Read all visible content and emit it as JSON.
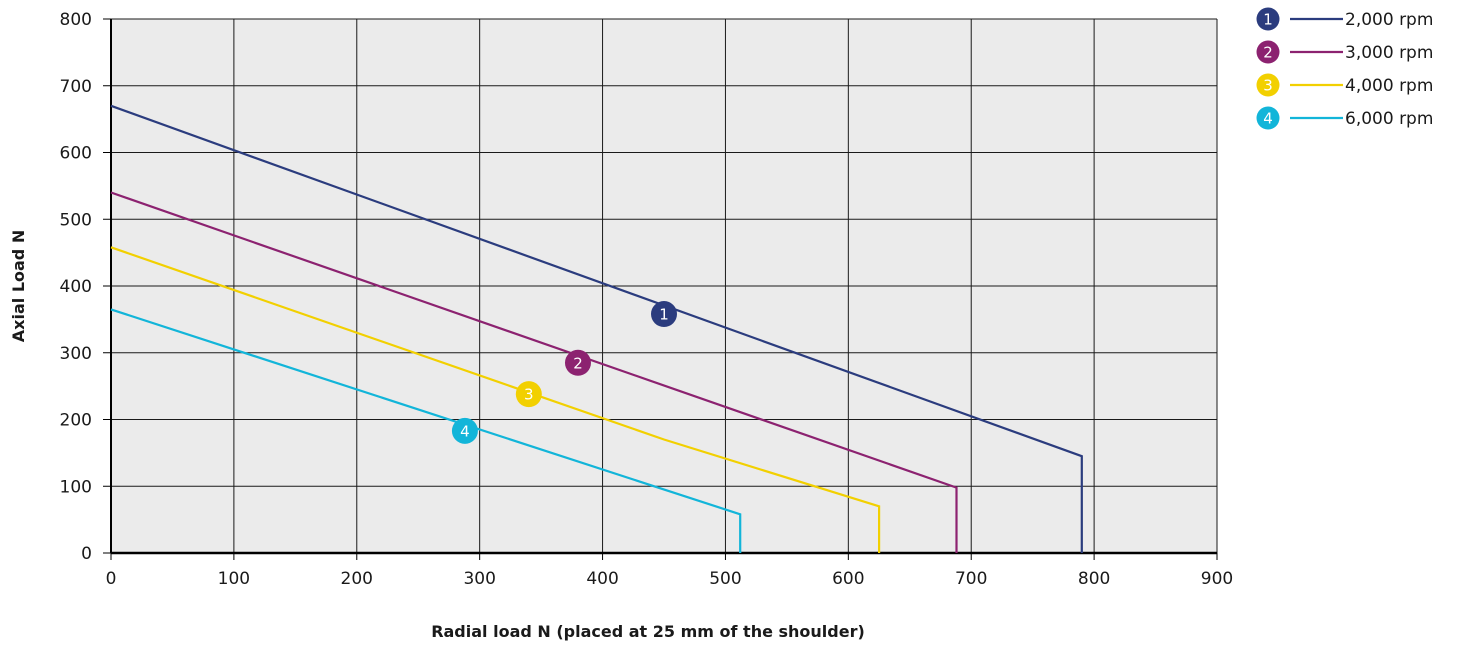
{
  "chart_data": {
    "type": "line",
    "title": "",
    "xlabel": "Radial load N (placed at 25 mm of the shoulder)",
    "ylabel": "Axial Load N",
    "xlim": [
      0,
      900
    ],
    "ylim": [
      0,
      800
    ],
    "xticks": [
      0,
      100,
      200,
      300,
      400,
      500,
      600,
      700,
      800,
      900
    ],
    "yticks": [
      0,
      100,
      200,
      300,
      400,
      500,
      600,
      700,
      800
    ],
    "grid": true,
    "plot_background": "#ebebeb",
    "legend_position": "top-right",
    "series": [
      {
        "name": "2,000 rpm",
        "marker_label": "1",
        "color": "#2b3c7e",
        "marker_at": [
          450,
          358
        ],
        "points": [
          [
            0,
            670
          ],
          [
            790,
            145
          ],
          [
            790,
            0
          ]
        ]
      },
      {
        "name": "3,000 rpm",
        "marker_label": "2",
        "color": "#8c2270",
        "marker_at": [
          380,
          285
        ],
        "points": [
          [
            0,
            540
          ],
          [
            688,
            98
          ],
          [
            688,
            0
          ]
        ]
      },
      {
        "name": "4,000 rpm",
        "marker_label": "3",
        "color": "#f2d000",
        "marker_at": [
          340,
          238
        ],
        "points": [
          [
            0,
            458
          ],
          [
            450,
            170
          ],
          [
            625,
            70
          ],
          [
            625,
            0
          ]
        ]
      },
      {
        "name": "6,000 rpm",
        "marker_label": "4",
        "color": "#12b5d9",
        "marker_at": [
          288,
          183
        ],
        "points": [
          [
            0,
            365
          ],
          [
            512,
            58
          ],
          [
            512,
            0
          ]
        ]
      }
    ]
  }
}
